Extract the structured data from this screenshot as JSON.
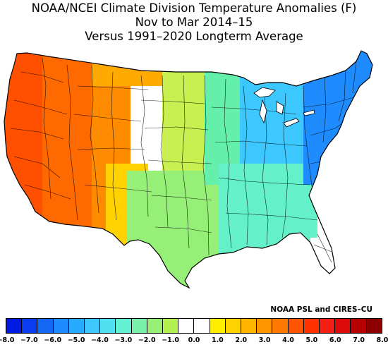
{
  "title": {
    "line1": "NOAA/NCEI Climate Division Temperature Anomalies (F)",
    "line2": "Nov to Mar 2014–15",
    "line3": "Versus 1991–2020 Longterm Average"
  },
  "credit": "NOAA PSL and CIRES–CU",
  "legend": {
    "colors": [
      "#0019e0",
      "#0a3cf0",
      "#1466f5",
      "#1e8cff",
      "#28aaff",
      "#3cc8ff",
      "#50e0f0",
      "#64f0d2",
      "#78f0aa",
      "#96f078",
      "#b4f050",
      "#ffffff",
      "#ffffff",
      "#ffee00",
      "#ffd200",
      "#ffb400",
      "#ff9600",
      "#ff7800",
      "#ff5500",
      "#ff3200",
      "#f51e14",
      "#dc0a0a",
      "#b40000",
      "#8c0000"
    ],
    "labels": [
      "−8.0",
      "−7.0",
      "−6.0",
      "−5.0",
      "−4.0",
      "−3.0",
      "−2.0",
      "−1.0",
      "0.0",
      "1.0",
      "2.0",
      "3.0",
      "4.0",
      "5.0",
      "6.0",
      "7.0",
      "8.0"
    ],
    "label_cells": [
      0,
      1.5,
      3,
      4.5,
      6,
      7.5,
      9,
      10.5,
      12,
      13.5,
      15,
      16.5,
      18,
      19.5,
      21,
      22.5,
      24
    ]
  },
  "regions": [
    {
      "name": "pacific-coast",
      "color": "#ff5000"
    },
    {
      "name": "great-basin",
      "color": "#ff6a00"
    },
    {
      "name": "interior-west",
      "color": "#ff8c00"
    },
    {
      "name": "northern-rockies",
      "color": "#ffaa00"
    },
    {
      "name": "southwest",
      "color": "#ffd200"
    },
    {
      "name": "northern-plains",
      "color": "#ffffff"
    },
    {
      "name": "central-plains",
      "color": "#c8f050"
    },
    {
      "name": "southern-plains",
      "color": "#96f078"
    },
    {
      "name": "midwest",
      "color": "#64f0aa"
    },
    {
      "name": "south",
      "color": "#64f0c8"
    },
    {
      "name": "great-lakes-ohio-valley",
      "color": "#3cc8ff"
    },
    {
      "name": "northeast",
      "color": "#1e8cff"
    },
    {
      "name": "florida",
      "color": "#ffffff"
    }
  ]
}
